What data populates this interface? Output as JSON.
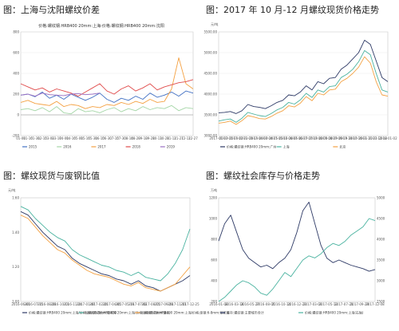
{
  "panels": [
    {
      "title": "图：上海与沈阳螺纹价差",
      "inner_title": "价格:螺纹钢:HRB400 20mm:上海-价格:螺纹钢:HRB400 20mm:沈阳"
    },
    {
      "title": "图：2017 年 10 月-12 月螺纹现货价格走势",
      "unit": "元/吨"
    },
    {
      "title": "图：螺纹现货与废钢比值",
      "unit": "元/吨"
    },
    {
      "title": "图：螺纹社会库存与价格走势",
      "unit": "万吨"
    }
  ],
  "chart_data": [
    {
      "type": "line",
      "ylim": [
        -200,
        800
      ],
      "yticks": [
        "800",
        "600",
        "400",
        "200",
        "0",
        "-200"
      ],
      "xticks": [
        "01-01",
        "01-16",
        "01-31",
        "02-15",
        "03-02",
        "03-17",
        "04-01",
        "04-16",
        "05-01",
        "05-16",
        "05-31",
        "06-15",
        "06-30",
        "07-15",
        "07-30",
        "08-14",
        "08-29",
        "09-13",
        "09-28",
        "10-13",
        "10-28",
        "11-12",
        "11-27",
        "12-12",
        "12-27"
      ],
      "legend_position": "bottom",
      "series": [
        {
          "name": "2015",
          "color": "#4472c4",
          "values": [
            190,
            200,
            175,
            220,
            160,
            190,
            150,
            200,
            170,
            140,
            170,
            210,
            150,
            120,
            160,
            140,
            180,
            150,
            210,
            170,
            190,
            220,
            180,
            230,
            210
          ]
        },
        {
          "name": "2016",
          "color": "#a5d6a7",
          "values": [
            50,
            60,
            40,
            70,
            30,
            80,
            20,
            10,
            60,
            30,
            40,
            20,
            50,
            70,
            30,
            60,
            40,
            80,
            50,
            70,
            60,
            90,
            40,
            70,
            60
          ]
        },
        {
          "name": "2017",
          "color": "#f4a142",
          "values": [
            120,
            140,
            110,
            100,
            90,
            130,
            80,
            100,
            90,
            60,
            80,
            70,
            100,
            90,
            120,
            100,
            130,
            110,
            150,
            120,
            130,
            250,
            550,
            300,
            250
          ]
        },
        {
          "name": "2018",
          "color": "#e04b4b",
          "values": [
            300,
            270,
            240,
            260,
            220,
            250,
            230,
            210,
            180,
            220,
            260,
            300,
            230,
            200,
            250,
            280,
            230,
            260,
            300,
            240,
            270,
            290,
            310,
            320,
            340
          ]
        },
        {
          "name": "2019",
          "color": "#9a6fc3",
          "values": [
            190,
            200,
            180,
            210,
            195,
            190,
            185,
            200,
            205,
            195,
            200,
            210
          ]
        }
      ]
    },
    {
      "type": "line",
      "ylim": [
        3000,
        5500
      ],
      "yticks": [
        "5500.00",
        "5000.00",
        "4500.00",
        "4000.00",
        "3500.00",
        "3000.00"
      ],
      "xticks": [
        "2017-01-03",
        "2017-01-24",
        "2017-02-21",
        "2017-03-14",
        "2017-04-04",
        "2017-04-25",
        "2017-05-16",
        "2017-06-06",
        "2017-06-27",
        "2017-07-18",
        "2017-08-08",
        "2017-08-29",
        "2017-09-19",
        "2017-10-10",
        "2017-10-31",
        "2017-11-21",
        "2017-12-12",
        "2018-01-02"
      ],
      "legend_position": "bottom",
      "series": [
        {
          "name": "价格:螺纹钢:HRB400 20mm:广州",
          "color": "#2e3a66",
          "values": [
            3550,
            3560,
            3580,
            3530,
            3600,
            3750,
            3700,
            3680,
            3650,
            3720,
            3800,
            3850,
            3980,
            3960,
            4050,
            4200,
            4100,
            4300,
            4250,
            4380,
            4400,
            4600,
            4700,
            4850,
            5000,
            5300,
            5200,
            4800,
            4400,
            4300
          ]
        },
        {
          "name": "上海",
          "color": "#4ab3a0",
          "values": [
            3350,
            3380,
            3400,
            3320,
            3420,
            3560,
            3520,
            3480,
            3460,
            3530,
            3620,
            3680,
            3800,
            3760,
            3860,
            4020,
            3920,
            4100,
            4050,
            4180,
            4200,
            4400,
            4480,
            4600,
            4780,
            5050,
            4950,
            4500,
            4100,
            4050
          ]
        },
        {
          "name": "北京",
          "color": "#f4a142",
          "values": [
            3300,
            3320,
            3350,
            3270,
            3360,
            3480,
            3450,
            3410,
            3400,
            3460,
            3540,
            3600,
            3720,
            3690,
            3780,
            3940,
            3840,
            4020,
            3980,
            4100,
            4120,
            4300,
            4380,
            4500,
            4650,
            4900,
            4750,
            4300,
            3980,
            3950
          ]
        }
      ]
    },
    {
      "type": "line",
      "ylim": [
        1.0,
        1.6
      ],
      "yticks": [
        "1.60",
        "1.40",
        "1.20",
        "1.00"
      ],
      "xticks": [
        "2016-06-01",
        "2016-07-15",
        "2016-08-28",
        "2016-10-11",
        "2016-11-24",
        "2017-01-07",
        "2017-02-20",
        "2017-04-05",
        "2017-05-19",
        "2017-07-02",
        "2017-08-15",
        "2017-09-28",
        "2017-11-11",
        "2017-12-25"
      ],
      "legend_position": "bottom",
      "series": [
        {
          "name": "价格:螺纹钢:HRB400 20mm:上海/价格:废钢:6-8mm:张家港",
          "color": "#2e3a66",
          "values": [
            1.52,
            1.5,
            1.45,
            1.4,
            1.36,
            1.32,
            1.3,
            1.25,
            1.22,
            1.2,
            1.18,
            1.16,
            1.15,
            1.13,
            1.12,
            1.1,
            1.12,
            1.09,
            1.08,
            1.06,
            1.08,
            1.1,
            1.12,
            1.15
          ]
        },
        {
          "name": "价格:螺纹钢:HRB400 20mm:上海/价格:废钢:6-8mm:唐山",
          "color": "#4ab3a0",
          "values": [
            1.55,
            1.53,
            1.48,
            1.44,
            1.4,
            1.37,
            1.35,
            1.3,
            1.27,
            1.25,
            1.23,
            1.21,
            1.2,
            1.18,
            1.17,
            1.15,
            1.17,
            1.14,
            1.13,
            1.12,
            1.16,
            1.22,
            1.3,
            1.42
          ]
        },
        {
          "name": "价格:螺纹钢:HRB400 20mm:上海/价格:废钢:6-8mm:张家港",
          "color": "#f4a142",
          "values": [
            1.5,
            1.48,
            1.43,
            1.38,
            1.34,
            1.3,
            1.28,
            1.24,
            1.21,
            1.18,
            1.16,
            1.15,
            1.14,
            1.12,
            1.1,
            1.09,
            1.11,
            1.08,
            1.07,
            1.06,
            1.08,
            1.1,
            1.15,
            1.2
          ]
        }
      ]
    },
    {
      "type": "line",
      "ylim_left": [
        0,
        1200
      ],
      "yticks_left": [
        "1200",
        "1000",
        "800",
        "600",
        "400",
        "200"
      ],
      "yticks_right": [
        "5000",
        "4500",
        "4000",
        "3500",
        "3000",
        "2500"
      ],
      "xticks": [
        "2016-01-08",
        "2016-03-18",
        "2016-05-27",
        "2016-08-05",
        "2016-10-14",
        "2016-12-23",
        "2017-03-03",
        "2017-05-12",
        "2017-07-21",
        "2017-09-29",
        "2017-12-08"
      ],
      "legend_position": "bottom",
      "series": [
        {
          "name": "库存:螺纹钢:主要城市合计",
          "color": "#2e3a66",
          "values": [
            700,
            900,
            1000,
            800,
            600,
            500,
            450,
            400,
            420,
            380,
            450,
            500,
            600,
            800,
            1050,
            1150,
            900,
            650,
            500,
            450,
            480,
            450,
            420,
            400,
            380,
            350,
            370
          ]
        },
        {
          "name": "价格:螺纹钢:HRB400 20mm:上海(右轴)",
          "color": "#4ab3a0",
          "values": [
            2500,
            2600,
            2750,
            2900,
            3000,
            2950,
            2850,
            2700,
            2650,
            2800,
            3000,
            3200,
            3100,
            3300,
            3500,
            3600,
            3550,
            3650,
            3800,
            3900,
            3850,
            3950,
            4100,
            4200,
            4300,
            4500,
            4450
          ]
        }
      ]
    }
  ]
}
